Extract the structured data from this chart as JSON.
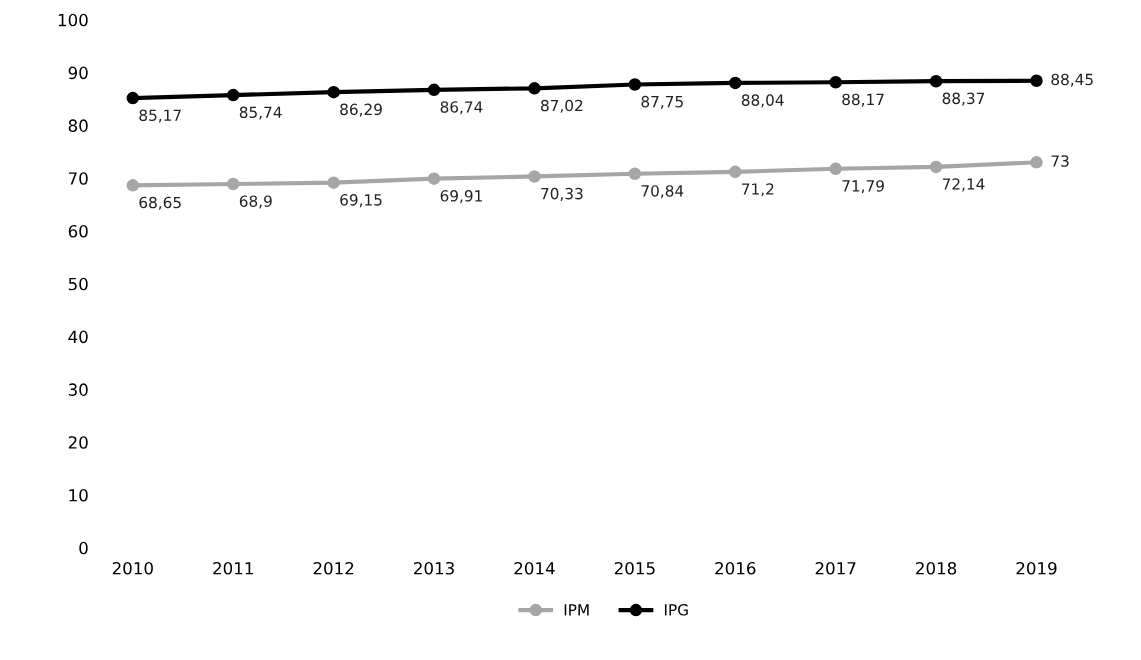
{
  "chart_data": {
    "type": "line",
    "categories": [
      "2010",
      "2011",
      "2012",
      "2013",
      "2014",
      "2015",
      "2016",
      "2017",
      "2018",
      "2019"
    ],
    "series": [
      {
        "name": "IPM",
        "color": "#a6a6a6",
        "values": [
          68.65,
          68.9,
          69.15,
          69.91,
          70.33,
          70.84,
          71.2,
          71.79,
          72.14,
          73
        ],
        "value_labels": [
          "68,65",
          "68,9",
          "69,15",
          "69,91",
          "70,33",
          "70,84",
          "71,2",
          "71,79",
          "72,14",
          "73"
        ]
      },
      {
        "name": "IPG",
        "color": "#000000",
        "values": [
          85.17,
          85.74,
          86.29,
          86.74,
          87.02,
          87.75,
          88.04,
          88.17,
          88.37,
          88.45
        ],
        "value_labels": [
          "85,17",
          "85,74",
          "86,29",
          "86,74",
          "87,02",
          "87,75",
          "88,04",
          "88,17",
          "88,37",
          "88,45"
        ]
      }
    ],
    "ylim": [
      0,
      100
    ],
    "yticks": [
      0,
      10,
      20,
      30,
      40,
      50,
      60,
      70,
      80,
      90,
      100
    ],
    "grid": false,
    "legend": "bottom",
    "marker": "circle",
    "line_style": "solid"
  }
}
